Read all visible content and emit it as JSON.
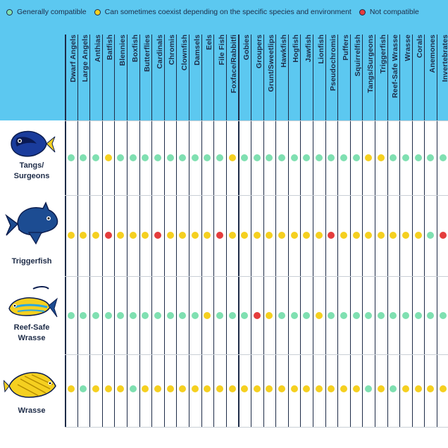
{
  "legend": [
    {
      "label": "Generally compatible",
      "color": "#7fe0b1"
    },
    {
      "label": "Can sometimes coexist depending on the specific species and environment",
      "color": "#f5d020"
    },
    {
      "label": "Not compatible",
      "color": "#e53d3d"
    }
  ],
  "columns": [
    "Dwarf Angels",
    "Large Angels",
    "Anthias",
    "Batfish",
    "Blennies",
    "Boxfish",
    "Butterflies",
    "Cardinals",
    "Chromis",
    "Clownfish",
    "Damsels",
    "Eels",
    "File Fish",
    "Foxface/Rabbitfi",
    "Gobies",
    "Groupers",
    "Grunt/Sweetlips",
    "Hawkfish",
    "Hogfish",
    "Jawfish",
    "Lionfish",
    "Pseudochromis",
    "Puffers",
    "Squirrelfish",
    "Tangs/Surgeons",
    "Triggerfish",
    "Reef-Safe Wrasse",
    "Wrasse",
    "Corals",
    "Anemones",
    "Invertebrates"
  ],
  "rows": [
    {
      "name1": "Tangs/",
      "name2": "Surgeons",
      "icon": "tang-fish-icon",
      "values": [
        "G",
        "G",
        "G",
        "Y",
        "G",
        "G",
        "G",
        "G",
        "G",
        "G",
        "G",
        "G",
        "G",
        "Y",
        "G",
        "G",
        "G",
        "G",
        "G",
        "G",
        "G",
        "G",
        "G",
        "G",
        "Y",
        "Y",
        "G",
        "G",
        "G",
        "G",
        "G"
      ]
    },
    {
      "name1": "Triggerfish",
      "name2": "",
      "icon": "triggerfish-icon",
      "values": [
        "Y",
        "Y",
        "Y",
        "R",
        "Y",
        "Y",
        "Y",
        "R",
        "Y",
        "Y",
        "Y",
        "Y",
        "R",
        "Y",
        "Y",
        "Y",
        "Y",
        "Y",
        "Y",
        "Y",
        "Y",
        "R",
        "Y",
        "Y",
        "Y",
        "Y",
        "Y",
        "Y",
        "Y",
        "G",
        "R"
      ]
    },
    {
      "name1": "Reef-Safe",
      "name2": "Wrasse",
      "icon": "reef-safe-wrasse-icon",
      "values": [
        "G",
        "G",
        "G",
        "G",
        "G",
        "G",
        "G",
        "G",
        "G",
        "G",
        "G",
        "Y",
        "G",
        "G",
        "G",
        "R",
        "Y",
        "G",
        "G",
        "G",
        "Y",
        "G",
        "G",
        "G",
        "G",
        "G",
        "G",
        "G",
        "G",
        "G",
        "G"
      ]
    },
    {
      "name1": "Wrasse",
      "name2": "",
      "icon": "wrasse-fish-icon",
      "values": [
        "Y",
        "G",
        "Y",
        "Y",
        "Y",
        "G",
        "Y",
        "Y",
        "Y",
        "Y",
        "Y",
        "Y",
        "Y",
        "Y",
        "Y",
        "Y",
        "Y",
        "Y",
        "Y",
        "Y",
        "Y",
        "Y",
        "Y",
        "Y",
        "G",
        "Y",
        "G",
        "Y",
        "Y",
        "Y",
        "Y"
      ]
    }
  ],
  "colors": {
    "G": "#7fe0b1",
    "Y": "#f5d020",
    "R": "#e53d3d",
    "header_bg": "#5cc8f0",
    "text": "#1d2b47"
  }
}
